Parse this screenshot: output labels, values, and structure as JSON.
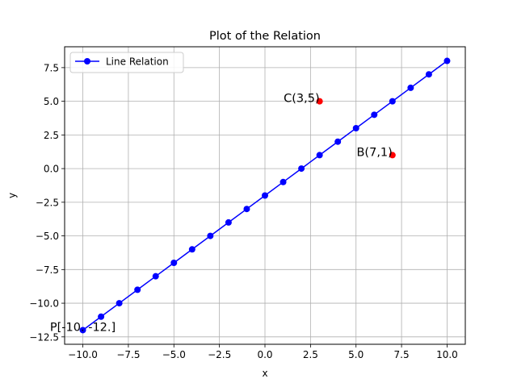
{
  "chart_data": {
    "type": "line",
    "title": "Plot of the Relation",
    "xlabel": "x",
    "ylabel": "y",
    "xlim": [
      -11.0,
      11.0
    ],
    "ylim": [
      -13.05,
      9.05
    ],
    "xticks": [
      -10.0,
      -7.5,
      -5.0,
      -2.5,
      0.0,
      2.5,
      5.0,
      7.5,
      10.0
    ],
    "xtick_labels": [
      "−10.0",
      "−7.5",
      "−5.0",
      "−2.5",
      "0.0",
      "2.5",
      "5.0",
      "7.5",
      "10.0"
    ],
    "yticks": [
      -12.5,
      -10.0,
      -7.5,
      -5.0,
      -2.5,
      0.0,
      2.5,
      5.0,
      7.5
    ],
    "ytick_labels": [
      "−12.5",
      "−10.0",
      "−7.5",
      "−5.0",
      "−2.5",
      "0.0",
      "2.5",
      "5.0",
      "7.5"
    ],
    "grid": true,
    "legend_position": "upper-left",
    "series": [
      {
        "name": "Line Relation",
        "color": "#0000ff",
        "x": [
          -10,
          -9,
          -8,
          -7,
          -6,
          -5,
          -4,
          -3,
          -2,
          -1,
          0,
          1,
          2,
          3,
          4,
          5,
          6,
          7,
          8,
          9,
          10
        ],
        "y": [
          -12,
          -11,
          -10,
          -9,
          -8,
          -7,
          -6,
          -5,
          -4,
          -3,
          -2,
          -1,
          0,
          1,
          2,
          3,
          4,
          5,
          6,
          7,
          8
        ]
      }
    ],
    "points": [
      {
        "label": "C(3,5)",
        "x": 3,
        "y": 5,
        "color": "#ff0000"
      },
      {
        "label": "B(7,1)",
        "x": 7,
        "y": 1,
        "color": "#ff0000"
      }
    ],
    "annotations": [
      {
        "text": "P[-10. -12.]",
        "x": -10,
        "y": -12
      }
    ]
  }
}
